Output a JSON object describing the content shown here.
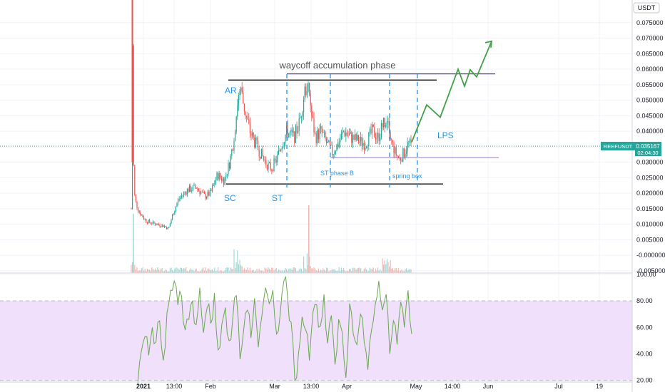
{
  "header": {
    "unit": "USDT"
  },
  "colors": {
    "up": "#26a69a",
    "down": "#ef5350",
    "rsi_line": "#6aa84f",
    "rsi_band": "#f0e0fb",
    "annotation": "#2196f3",
    "arrow": "#43a047",
    "range_line": "#000000",
    "resistance_line": "#673ab7",
    "price_badge": "#26a69a"
  },
  "price_axis": {
    "ticks": [
      "0.075000",
      "0.070000",
      "0.065000",
      "0.060000",
      "0.055000",
      "0.050000",
      "0.045000",
      "0.040000",
      "0.030000",
      "0.025000",
      "0.020000",
      "0.015000",
      "0.010000",
      "0.005000",
      "-0.000000",
      "-0.005000"
    ]
  },
  "rsi_axis": {
    "ticks": [
      "100.00",
      "80.00",
      "60.00",
      "40.00",
      "20.00"
    ]
  },
  "time_axis": {
    "ticks": [
      "2021",
      "13:00",
      "Feb",
      "Mar",
      "13:00",
      "Apr",
      "May",
      "14:00",
      "Jun",
      "Jul",
      "19"
    ]
  },
  "price_badge": {
    "symbol": "REEFUSDT",
    "price": "0.035167",
    "countdown": "02:04:30"
  },
  "annotations": {
    "title": "waycoff accumulation phase",
    "ar": "AR",
    "sc": "SC",
    "st": "ST",
    "st_phase_b": "ST phase B",
    "spring_box": "spring box",
    "lps": "LPS"
  },
  "chart_data": [
    {
      "type": "candlestick",
      "title": "",
      "xlabel": "",
      "ylabel": "",
      "ylim": [
        -0.006,
        0.08
      ],
      "series": [
        {
          "period": "early Jan 2021",
          "close_approx": 0.015,
          "note": "spike high above 0.08"
        },
        {
          "period": "late Jan 2021",
          "close_approx": 0.009
        },
        {
          "period": "early Feb 2021",
          "close_approx": 0.021
        },
        {
          "period": "mid Feb 2021",
          "close_approx": 0.052
        },
        {
          "period": "late Feb 2021",
          "close_approx": 0.03
        },
        {
          "period": "early Mar 2021",
          "close_approx": 0.04
        },
        {
          "period": "mid Mar 2021",
          "close_approx": 0.056
        },
        {
          "period": "late Mar 2021",
          "close_approx": 0.038
        },
        {
          "period": "Apr 2021",
          "close_approx": 0.038
        },
        {
          "period": "late Apr 2021",
          "close_approx": 0.035167
        }
      ],
      "levels": {
        "range_high": 0.0565,
        "range_low": 0.023,
        "resistance": 0.0585,
        "support": 0.0315
      },
      "projection": [
        0.0365,
        0.0485,
        0.0445,
        0.06,
        0.0545,
        0.0598,
        0.0575,
        0.069
      ]
    },
    {
      "type": "line",
      "title": "",
      "ylim": [
        15,
        100
      ],
      "band": [
        20,
        80
      ],
      "series": [
        {
          "name": "",
          "values": [
            17,
            42,
            53,
            39,
            60,
            49,
            65,
            35,
            71,
            88,
            95,
            77,
            84,
            58,
            66,
            80,
            62,
            90,
            56,
            75,
            63,
            86,
            43,
            62,
            75,
            50,
            66,
            84,
            36,
            58,
            73,
            52,
            82,
            45,
            69,
            90,
            78,
            88,
            55,
            70,
            95,
            84,
            64,
            20,
            40,
            68,
            58,
            35,
            72,
            77,
            61,
            85,
            48,
            69,
            32,
            66,
            56,
            22,
            78,
            55,
            47,
            70,
            49,
            28,
            58,
            77,
            95,
            73,
            85,
            40,
            65,
            47,
            79,
            60,
            88,
            55
          ]
        }
      ]
    }
  ]
}
